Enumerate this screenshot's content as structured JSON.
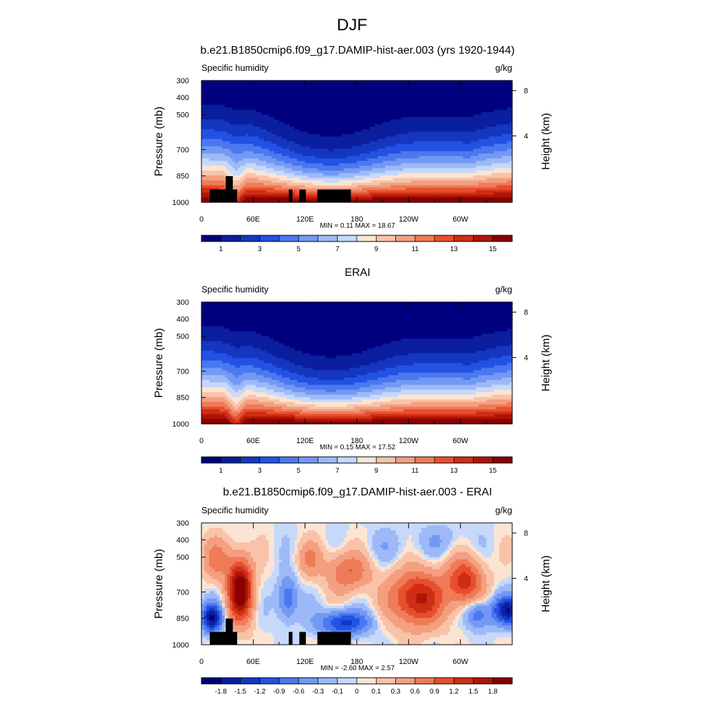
{
  "figure": {
    "title": "DJF"
  },
  "panels": [
    {
      "title": "b.e21.B1850cmip6.f09_g17.DAMIP-hist-aer.003 (yrs 1920-1944)",
      "left_label": "Specific humidity",
      "right_label": "g/kg",
      "stats": "MIN =   0.11  MAX =  18.67",
      "kind": "field",
      "colorbar_labels": [
        "1",
        "3",
        "5",
        "7",
        "9",
        "11",
        "13",
        "15"
      ]
    },
    {
      "title": "ERAI",
      "left_label": "Specific humidity",
      "right_label": "g/kg",
      "stats": "MIN =   0.15  MAX =  17.52",
      "kind": "field",
      "colorbar_labels": [
        "1",
        "3",
        "5",
        "7",
        "9",
        "11",
        "13",
        "15"
      ]
    },
    {
      "title": "b.e21.B1850cmip6.f09_g17.DAMIP-hist-aer.003 - ERAI",
      "left_label": "Specific humidity",
      "right_label": "g/kg",
      "stats": "MIN =  -2.60  MAX =   2.57",
      "kind": "diff",
      "colorbar_labels": [
        "-1.8",
        "-1.5",
        "-1.2",
        "-0.9",
        "-0.6",
        "-0.3",
        "-0.1",
        "0",
        "0.1",
        "0.3",
        "0.6",
        "0.9",
        "1.2",
        "1.5",
        "1.8"
      ]
    }
  ],
  "axes": {
    "ylabel": "Pressure (mb)",
    "y2label": "Height (km)",
    "y_ticks": [
      "300",
      "400",
      "500",
      "700",
      "850",
      "1000"
    ],
    "y2_ticks": [
      "8",
      "4"
    ],
    "x_ticks": [
      "0",
      "60E",
      "120E",
      "180",
      "120W",
      "60W"
    ]
  },
  "colors": {
    "field": [
      "#00007f",
      "#0a1e9e",
      "#1537c0",
      "#2352e3",
      "#4a78f0",
      "#7399f4",
      "#9db9f7",
      "#c6d9fb",
      "#fbe4d4",
      "#f8c3a9",
      "#f49f80",
      "#ef7b58",
      "#e74f2d",
      "#cf2d15",
      "#ad1509",
      "#8a0000"
    ],
    "diff": [
      "#00007f",
      "#0a1e9e",
      "#1537c0",
      "#2352e3",
      "#4a78f0",
      "#7399f4",
      "#9db9f7",
      "#c6d9fb",
      "#fbe4d4",
      "#f8c3a9",
      "#f49f80",
      "#ef7b58",
      "#e74f2d",
      "#cf2d15",
      "#ad1509",
      "#8a0000"
    ]
  },
  "chart_data": [
    {
      "type": "heatmap",
      "title": "b.e21.B1850cmip6.f09_g17.DAMIP-hist-aer.003 (yrs 1920-1944)",
      "xlabel": "",
      "ylabel": "Pressure (mb)",
      "y2label": "Height (km)",
      "x": "longitude 0-360",
      "y": "pressure 300-1000 mb",
      "levels": [
        1,
        2,
        3,
        4,
        5,
        6,
        7,
        8,
        9,
        10,
        11,
        12,
        13,
        14,
        15
      ],
      "min": 0.11,
      "max": 18.67,
      "units": "g/kg"
    },
    {
      "type": "heatmap",
      "title": "ERAI",
      "ylabel": "Pressure (mb)",
      "y2label": "Height (km)",
      "levels": [
        1,
        2,
        3,
        4,
        5,
        6,
        7,
        8,
        9,
        10,
        11,
        12,
        13,
        14,
        15
      ],
      "min": 0.15,
      "max": 17.52,
      "units": "g/kg"
    },
    {
      "type": "heatmap",
      "title": "b.e21.B1850cmip6.f09_g17.DAMIP-hist-aer.003 - ERAI",
      "ylabel": "Pressure (mb)",
      "y2label": "Height (km)",
      "levels": [
        -1.8,
        -1.5,
        -1.2,
        -0.9,
        -0.6,
        -0.3,
        -0.1,
        0,
        0.1,
        0.3,
        0.6,
        0.9,
        1.2,
        1.5,
        1.8
      ],
      "min": -2.6,
      "max": 2.57,
      "units": "g/kg"
    }
  ]
}
